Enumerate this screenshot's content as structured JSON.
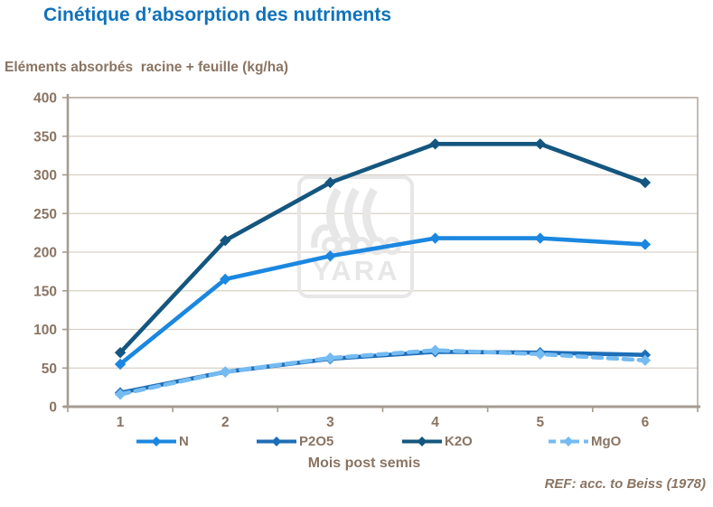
{
  "header": {
    "title": "Cinétique d’absorption des nutriments"
  },
  "y_axis_title": "Eléments absorbés  racine + feuille (kg/ha)",
  "x_axis_title": "Mois post semis",
  "footer": {
    "ref": "REF: acc. to Beiss (1978)"
  },
  "watermark": {
    "text": "YARA"
  },
  "colors": {
    "title": "#0f72ba",
    "axis_text": "#8a7462",
    "gridline": "#d9d0c6",
    "axis_line": "#a59c90",
    "plot_border": "#b5aba0",
    "watermark": "#e7e7e7"
  },
  "chart_data": {
    "type": "line",
    "title": "Cinétique d’absorption des nutriments",
    "ylabel": "Eléments absorbés  racine + feuille (kg/ha)",
    "xlabel": "Mois post semis",
    "x": [
      1,
      2,
      3,
      4,
      5,
      6
    ],
    "xticks": [
      "1",
      "2",
      "3",
      "4",
      "5",
      "6"
    ],
    "yticks": [
      0,
      50,
      100,
      150,
      200,
      250,
      300,
      350,
      400
    ],
    "ylim": [
      0,
      400
    ],
    "grid": true,
    "legend_position": "bottom",
    "series": [
      {
        "name": "N",
        "color": "#1b87e0",
        "style": "solid",
        "values": [
          55,
          165,
          195,
          218,
          218,
          210
        ]
      },
      {
        "name": "P2O5",
        "color": "#1d6eb7",
        "style": "solid",
        "values": [
          18,
          45,
          62,
          71,
          70,
          67
        ]
      },
      {
        "name": "K2O",
        "color": "#14567f",
        "style": "solid",
        "values": [
          70,
          215,
          290,
          340,
          340,
          290
        ]
      },
      {
        "name": "MgO",
        "color": "#74bbf2",
        "style": "dashed",
        "values": [
          16,
          45,
          63,
          73,
          68,
          60
        ]
      }
    ]
  }
}
